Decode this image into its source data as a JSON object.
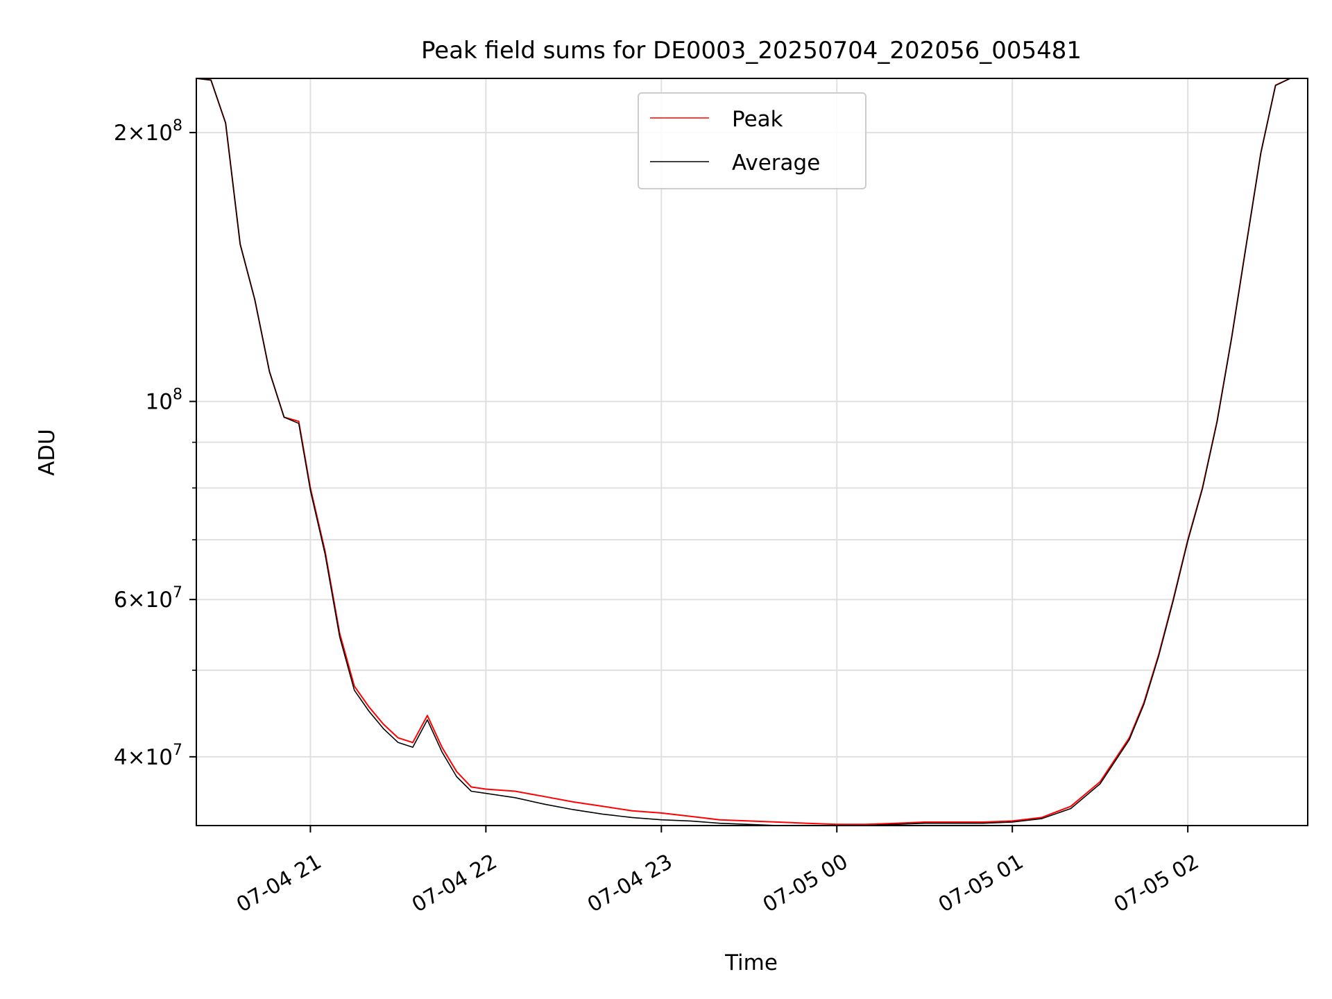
{
  "chart_data": {
    "type": "line",
    "title": "Peak field sums for DE0003_20250704_202056_005481",
    "xlabel": "Time",
    "ylabel": "ADU",
    "yscale": "log",
    "xlim": [
      "2025-07-04 20:21",
      "2025-07-05 02:41"
    ],
    "ylim": [
      33500000,
      230000000
    ],
    "grid": true,
    "legend_position": "top-center",
    "x_ticks": [
      "07-04 21",
      "07-04 22",
      "07-04 23",
      "07-05 00",
      "07-05 01",
      "07-05 02"
    ],
    "y_ticks": [
      {
        "value": 40000000,
        "mant": "4",
        "exp": "7"
      },
      {
        "value": 60000000,
        "mant": "6",
        "exp": "7"
      },
      {
        "value": 100000000,
        "mant": "",
        "exp": "8"
      },
      {
        "value": 200000000,
        "mant": "2",
        "exp": "8"
      }
    ],
    "series": [
      {
        "name": "Peak",
        "color": "#ff0000",
        "x": [
          "20:21",
          "20:26",
          "20:31",
          "20:36",
          "20:41",
          "20:46",
          "20:51",
          "20:56",
          "21:00",
          "21:05",
          "21:10",
          "21:15",
          "21:20",
          "21:25",
          "21:30",
          "21:35",
          "21:40",
          "21:45",
          "21:50",
          "21:55",
          "22:00",
          "22:10",
          "22:20",
          "22:30",
          "22:40",
          "22:50",
          "23:00",
          "23:10",
          "23:20",
          "23:30",
          "23:40",
          "23:50",
          "00:00",
          "00:10",
          "00:20",
          "00:30",
          "00:40",
          "00:50",
          "01:00",
          "01:10",
          "01:20",
          "01:30",
          "01:40",
          "01:45",
          "01:50",
          "01:55",
          "02:00",
          "02:05",
          "02:10",
          "02:15",
          "02:20",
          "02:25",
          "02:30",
          "02:35",
          "02:41"
        ],
        "y": [
          230000000,
          229000000,
          205000000,
          150000000,
          130000000,
          108000000,
          96000000,
          95000000,
          80000000,
          68000000,
          55000000,
          48000000,
          45500000,
          43500000,
          42000000,
          41500000,
          44500000,
          41000000,
          38500000,
          37000000,
          36800000,
          36600000,
          36100000,
          35600000,
          35200000,
          34800000,
          34600000,
          34300000,
          34000000,
          33900000,
          33800000,
          33700000,
          33600000,
          33600000,
          33700000,
          33800000,
          33800000,
          33800000,
          33900000,
          34200000,
          35200000,
          37500000,
          42000000,
          46000000,
          52000000,
          60000000,
          70000000,
          80000000,
          95000000,
          118000000,
          150000000,
          190000000,
          226000000,
          230000000,
          230000000
        ]
      },
      {
        "name": "Average",
        "color": "#000000",
        "x": [
          "20:21",
          "20:26",
          "20:31",
          "20:36",
          "20:41",
          "20:46",
          "20:51",
          "20:56",
          "21:00",
          "21:05",
          "21:10",
          "21:15",
          "21:20",
          "21:25",
          "21:30",
          "21:35",
          "21:40",
          "21:45",
          "21:50",
          "21:55",
          "22:00",
          "22:10",
          "22:20",
          "22:30",
          "22:40",
          "22:50",
          "23:00",
          "23:10",
          "23:20",
          "23:30",
          "23:40",
          "23:50",
          "00:00",
          "00:10",
          "00:20",
          "00:30",
          "00:40",
          "00:50",
          "01:00",
          "01:10",
          "01:20",
          "01:30",
          "01:40",
          "01:45",
          "01:50",
          "01:55",
          "02:00",
          "02:05",
          "02:10",
          "02:15",
          "02:20",
          "02:25",
          "02:30",
          "02:35",
          "02:41"
        ],
        "y": [
          230000000,
          229000000,
          205000000,
          150000000,
          130000000,
          108000000,
          96000000,
          94500000,
          79500000,
          67500000,
          54500000,
          47500000,
          45000000,
          43000000,
          41500000,
          41000000,
          44000000,
          40500000,
          38000000,
          36600000,
          36400000,
          36000000,
          35400000,
          34900000,
          34500000,
          34200000,
          34000000,
          33900000,
          33700000,
          33600000,
          33500000,
          33500000,
          33500000,
          33500000,
          33600000,
          33700000,
          33700000,
          33700000,
          33800000,
          34100000,
          35000000,
          37300000,
          41800000,
          45800000,
          51800000,
          59800000,
          69800000,
          79800000,
          94800000,
          117800000,
          149800000,
          189800000,
          225800000,
          230000000,
          230000000
        ]
      }
    ]
  }
}
